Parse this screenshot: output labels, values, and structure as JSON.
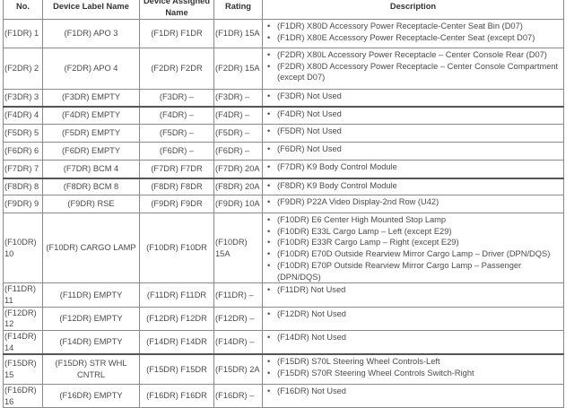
{
  "headers": {
    "no": "No.",
    "label": "Device Label Name",
    "assigned": "Device Assigned Name",
    "rating": "Rating",
    "description": "Description"
  },
  "rows": [
    {
      "no": "(F1DR) 1",
      "label": "(F1DR) APO 3",
      "assigned": "(F1DR) F1DR",
      "rating": "(F1DR) 15A",
      "desc": [
        "(F1DR) X80D Accessory Power Receptacle-Center Seat Bin (D07)",
        "(F1DR) X80E Accessory Power Receptacle-Center Seat (except D07)"
      ]
    },
    {
      "no": "(F2DR) 2",
      "label": "(F2DR) APO 4",
      "assigned": "(F2DR) F2DR",
      "rating": "(F2DR) 15A",
      "desc": [
        "(F2DR) X80L Accessory Power Receptacle – Center Console Rear (D07)",
        "(F2DR) X80D Accessory Power Receptacle – Center Console Compartment (except D07)"
      ]
    },
    {
      "no": "(F3DR) 3",
      "label": "(F3DR) EMPTY",
      "assigned": "(F3DR) –",
      "rating": "(F3DR) –",
      "desc": [
        "(F3DR) Not Used"
      ]
    },
    {
      "no": "(F4DR) 4",
      "label": "(F4DR) EMPTY",
      "assigned": "(F4DR) –",
      "rating": "(F4DR) –",
      "desc": [
        "(F4DR) Not Used"
      ]
    },
    {
      "no": "(F5DR) 5",
      "label": "(F5DR) EMPTY",
      "assigned": "(F5DR) –",
      "rating": "(F5DR) –",
      "desc": [
        "(F5DR) Not Used"
      ]
    },
    {
      "no": "(F6DR) 6",
      "label": "(F6DR) EMPTY",
      "assigned": "(F6DR) –",
      "rating": "(F6DR) –",
      "desc": [
        "(F6DR) Not Used"
      ]
    },
    {
      "no": "(F7DR) 7",
      "label": "(F7DR) BCM 4",
      "assigned": "(F7DR) F7DR",
      "rating": "(F7DR) 20A",
      "desc": [
        "(F7DR) K9 Body Control Module"
      ]
    },
    {
      "no": "(F8DR) 8",
      "label": "(F8DR) BCM 8",
      "assigned": "(F8DR) F8DR",
      "rating": "(F8DR) 20A",
      "desc": [
        "(F8DR) K9 Body Control Module"
      ]
    },
    {
      "no": "(F9DR) 9",
      "label": "(F9DR) RSE",
      "assigned": "(F9DR) F9DR",
      "rating": "(F9DR) 10A",
      "desc": [
        "(F9DR) P22A Video Display-2nd Row (U42)"
      ]
    },
    {
      "no": "(F10DR) 10",
      "label": "(F10DR) CARGO LAMP",
      "assigned": "(F10DR) F10DR",
      "rating": "(F10DR) 15A",
      "desc": [
        "(F10DR) E6 Center High Mounted Stop Lamp",
        "(F10DR) E33L Cargo Lamp – Left (except E29)",
        "(F10DR) E33R Cargo Lamp – Right (except E29)",
        "(F10DR) E70D Outside Rearview Mirror Cargo Lamp – Driver (DPN/DQS)",
        "(F10DR) E70P Outside Rearview Mirror Cargo Lamp – Passenger (DPN/DQS)"
      ]
    },
    {
      "no": "(F11DR) 11",
      "label": "(F11DR) EMPTY",
      "assigned": "(F11DR) F11DR",
      "rating": "(F11DR) –",
      "desc": [
        "(F11DR) Not Used"
      ]
    },
    {
      "no": "(F12DR) 12",
      "label": "(F12DR) EMPTY",
      "assigned": "(F12DR) F12DR",
      "rating": "(F12DR) –",
      "desc": [
        "(F12DR) Not Used"
      ]
    },
    {
      "no": "(F14DR) 14",
      "label": "(F14DR) EMPTY",
      "assigned": "(F14DR) F14DR",
      "rating": "(F14DR) –",
      "desc": [
        "(F14DR) Not Used"
      ]
    },
    {
      "no": "(F15DR) 15",
      "label": "(F15DR) STR WHL CNTRL",
      "assigned": "(F15DR) F15DR",
      "rating": "(F15DR) 2A",
      "desc": [
        "(F15DR) S70L Steering Wheel Controls-Left",
        "(F15DR) S70R Steering Wheel Controls Switch-Right"
      ]
    },
    {
      "no": "(F16DR) 16",
      "label": "(F16DR) EMPTY",
      "assigned": "(F16DR) F16DR",
      "rating": "(F16DR) –",
      "desc": [
        "(F16DR) Not Used"
      ]
    }
  ]
}
